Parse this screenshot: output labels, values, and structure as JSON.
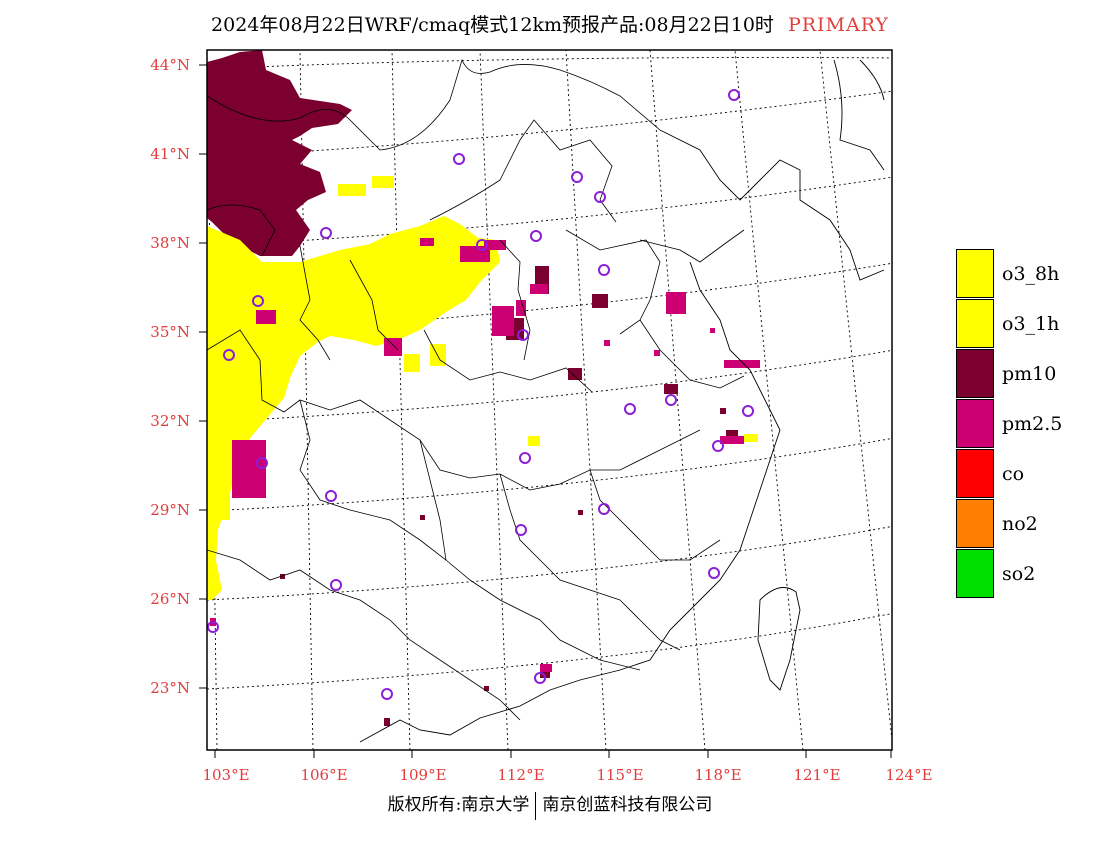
{
  "title": {
    "text": "2024年08月22日WRF/cmaq模式12km预报产品:08月22日10时",
    "tag": "PRIMARY"
  },
  "map": {
    "lat_labels": [
      "44°N",
      "41°N",
      "38°N",
      "35°N",
      "32°N",
      "29°N",
      "26°N",
      "23°N"
    ],
    "lon_labels": [
      "103°E",
      "106°E",
      "109°E",
      "112°E",
      "115°E",
      "118°E",
      "121°E",
      "124°E"
    ],
    "colors": {
      "o3": "#ffff00",
      "pm10": "#7b0030",
      "pm25": "#cc0073",
      "co": "#ff0000",
      "no2": "#ff7f00",
      "so2": "#00e000",
      "station": "#8a1fd8",
      "label": "#e23c3c"
    }
  },
  "legend": [
    {
      "label": "o3_8h",
      "color": "#ffff00"
    },
    {
      "label": "o3_1h",
      "color": "#ffff00"
    },
    {
      "label": "pm10",
      "color": "#7b0030"
    },
    {
      "label": "pm2.5",
      "color": "#cc0073"
    },
    {
      "label": "co",
      "color": "#ff0000"
    },
    {
      "label": "no2",
      "color": "#ff7f00"
    },
    {
      "label": "so2",
      "color": "#00e000"
    }
  ],
  "footer": {
    "left": "版权所有:南京大学",
    "right": "南京创蓝科技有限公司"
  }
}
